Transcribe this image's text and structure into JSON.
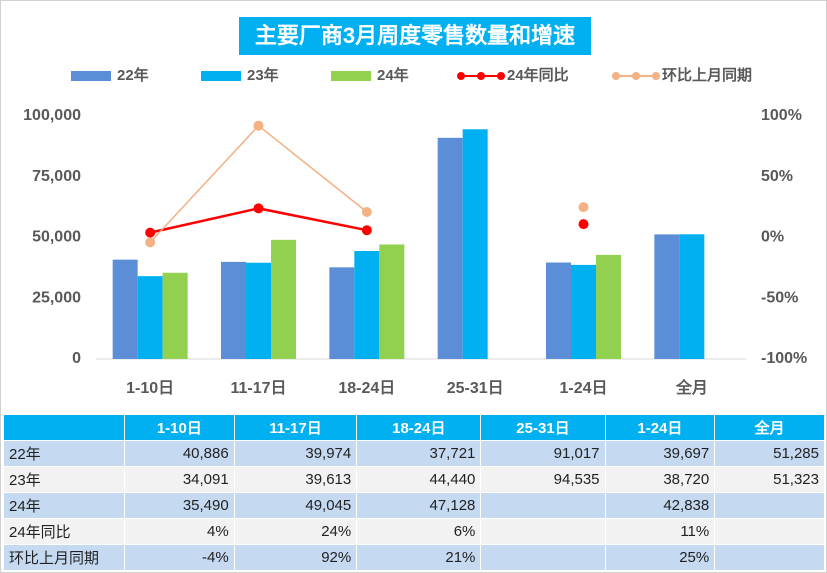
{
  "chart_data": {
    "type": "bar",
    "title": "主要厂商3月周度零售数量和增速",
    "categories": [
      "1-10日",
      "11-17日",
      "18-24日",
      "25-31日",
      "1-24日",
      "全月"
    ],
    "series": [
      {
        "name": "22年",
        "color": "#5b8ed6",
        "values": [
          40886,
          39974,
          37721,
          91017,
          39697,
          51285
        ],
        "value_labels": [
          "40,886",
          "39,974",
          "37,721",
          "91,017",
          "39,697",
          "51,285"
        ]
      },
      {
        "name": "23年",
        "color": "#00b0f0",
        "values": [
          34091,
          39613,
          44440,
          94535,
          38720,
          51323
        ],
        "value_labels": [
          "34,091",
          "39,613",
          "44,440",
          "94,535",
          "38,720",
          "51,323"
        ]
      },
      {
        "name": "24年",
        "color": "#92d050",
        "values": [
          35490,
          49045,
          47128,
          null,
          42838,
          null
        ],
        "value_labels": [
          "35,490",
          "49,045",
          "47,128",
          null,
          "42,838",
          null
        ]
      },
      {
        "name": "24年同比",
        "type": "line",
        "axis": "y2",
        "color": "#ff0000",
        "values": [
          4,
          24,
          6,
          null,
          11,
          null
        ],
        "value_labels": [
          "4%",
          "24%",
          "6%",
          null,
          "11%",
          null
        ]
      },
      {
        "name": "环比上月同期",
        "type": "line",
        "axis": "y2",
        "color": "#f4b183",
        "values": [
          -4,
          92,
          21,
          null,
          25,
          null
        ],
        "value_labels": [
          "-4%",
          "92%",
          "21%",
          null,
          "25%",
          null
        ]
      }
    ],
    "ylim": [
      0,
      100000
    ],
    "yticks": [
      0,
      {
        "value": 25000,
        "label": "25,000"
      },
      {
        "value": 50000,
        "label": "50,000"
      },
      {
        "value": 75000,
        "label": "75,000"
      },
      {
        "value": 100000,
        "label": "100,000"
      }
    ],
    "y2lim": [
      -100,
      100
    ],
    "y2ticks": [
      {
        "value": -100,
        "label": "-100%"
      },
      {
        "value": -50,
        "label": "-50%"
      },
      {
        "value": 0,
        "label": "0%"
      },
      {
        "value": 50,
        "label": "50%"
      },
      {
        "value": 100,
        "label": "100%"
      }
    ],
    "grid": false,
    "legend": "top"
  }
}
